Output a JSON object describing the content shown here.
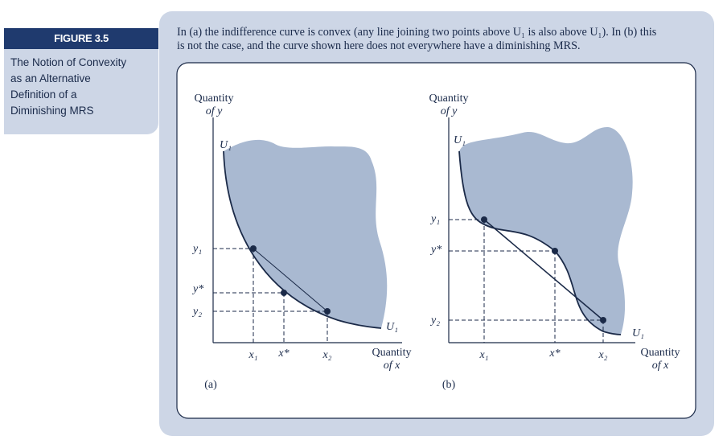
{
  "figure": {
    "label": "FIGURE 3.5",
    "title_lines": [
      "The Notion of Convexity",
      "as an Alternative",
      "Definition of a",
      "Diminishing MRS"
    ]
  },
  "caption": {
    "line1": "In (a) the indifference curve is convex (any line joining two points above U₁ is also above U₁). In (b) this",
    "line2": "is not the case, and the curve shown here does not everywhere have a diminishing MRS."
  },
  "colors": {
    "sidebar_label_bg": "#1f3a6e",
    "panel_bg": "#cdd6e6",
    "shaded_region": "#a9b9d1",
    "curve": "#1b2a48"
  },
  "panel_a": {
    "y_axis_label_line1": "Quantity",
    "y_axis_label_line2": "of y",
    "x_axis_label_line1": "Quantity",
    "x_axis_label_line2": "of x",
    "curve_label_top": "U₁",
    "curve_label_bottom": "U₁",
    "y_ticks": [
      "y₁",
      "y*",
      "y₂"
    ],
    "x_ticks": [
      "x₁",
      "x*",
      "x₂"
    ],
    "panel_label": "(a)"
  },
  "panel_b": {
    "y_axis_label_line1": "Quantity",
    "y_axis_label_line2": "of y",
    "x_axis_label_line1": "Quantity",
    "x_axis_label_line2": "of x",
    "curve_label_top": "U₁",
    "curve_label_bottom": "U₁",
    "y_ticks": [
      "y₁",
      "y*",
      "y₂"
    ],
    "x_ticks": [
      "x₁",
      "x*",
      "x₂"
    ],
    "panel_label": "(b)"
  }
}
